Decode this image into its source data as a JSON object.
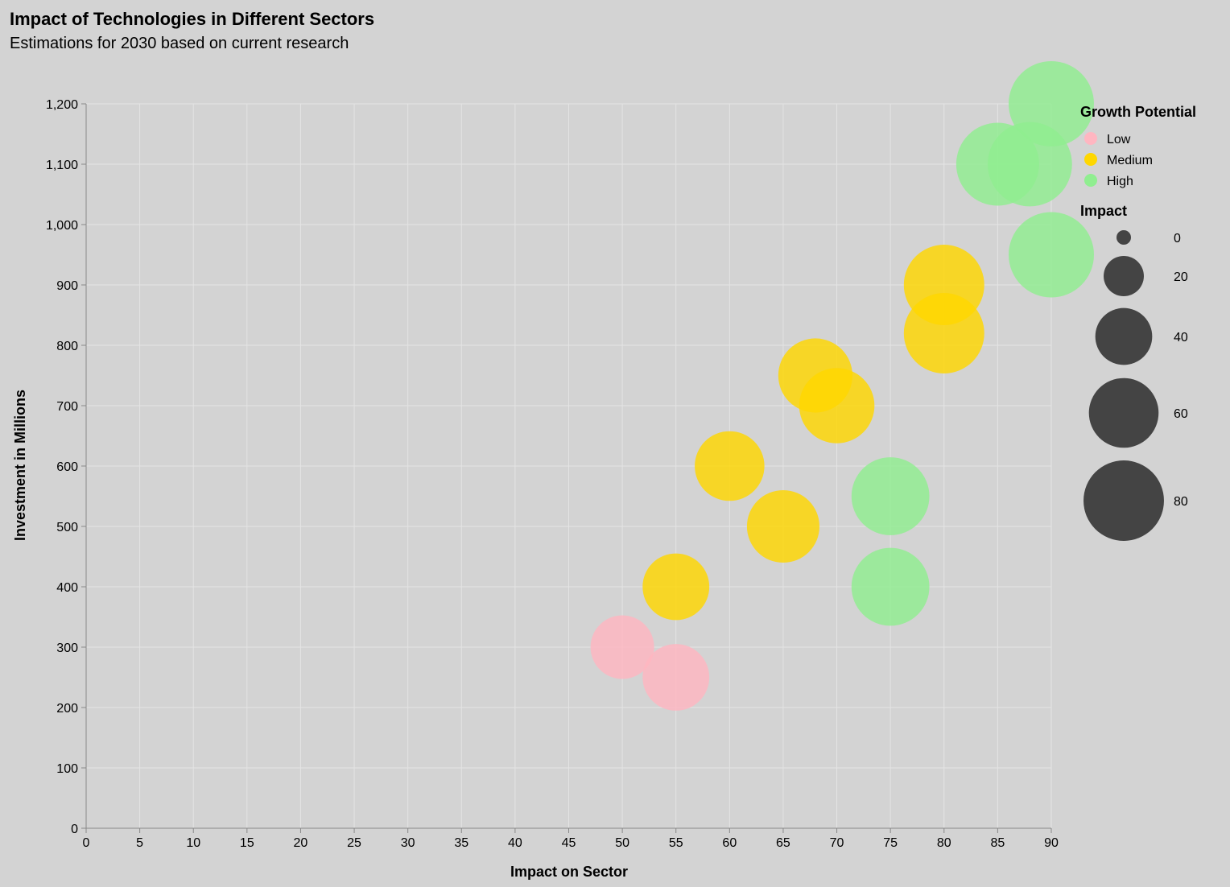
{
  "colors": {
    "background": "#d3d3d3",
    "grid": "#e4e4e4",
    "axis": "#888888",
    "Low": "#ffb6c1",
    "Medium": "#ffd700",
    "High": "#90ee90",
    "size_legend": "#444444"
  },
  "chart_data": {
    "type": "scatter",
    "title": "Impact of Technologies in Different Sectors",
    "subtitle": "Estimations for 2030 based on current research",
    "xlabel": "Impact on Sector",
    "ylabel": "Investment in Millions",
    "xlim": [
      0,
      90
    ],
    "ylim": [
      0,
      1200
    ],
    "x_ticks": [
      0,
      5,
      10,
      15,
      20,
      25,
      30,
      35,
      40,
      45,
      50,
      55,
      60,
      65,
      70,
      75,
      80,
      85,
      90
    ],
    "y_ticks": [
      0,
      100,
      200,
      300,
      400,
      500,
      600,
      700,
      800,
      900,
      1000,
      1100,
      1200
    ],
    "grid": true,
    "legend_color": {
      "title": "Growth Potential",
      "entries": [
        "Low",
        "Medium",
        "High"
      ],
      "placement": "top-right"
    },
    "legend_size": {
      "title": "Impact",
      "values": [
        0,
        20,
        40,
        60,
        80
      ],
      "placement": "right"
    },
    "points": [
      {
        "x": 90,
        "y": 1200,
        "size": 90,
        "growth": "High"
      },
      {
        "x": 85,
        "y": 1100,
        "size": 85,
        "growth": "High"
      },
      {
        "x": 88,
        "y": 1100,
        "size": 88,
        "growth": "High"
      },
      {
        "x": 90,
        "y": 950,
        "size": 90,
        "growth": "High"
      },
      {
        "x": 80,
        "y": 900,
        "size": 80,
        "growth": "Medium"
      },
      {
        "x": 80,
        "y": 820,
        "size": 80,
        "growth": "Medium"
      },
      {
        "x": 68,
        "y": 750,
        "size": 68,
        "growth": "Medium"
      },
      {
        "x": 70,
        "y": 700,
        "size": 70,
        "growth": "Medium"
      },
      {
        "x": 60,
        "y": 600,
        "size": 60,
        "growth": "Medium"
      },
      {
        "x": 75,
        "y": 550,
        "size": 75,
        "growth": "High"
      },
      {
        "x": 65,
        "y": 500,
        "size": 65,
        "growth": "Medium"
      },
      {
        "x": 55,
        "y": 400,
        "size": 55,
        "growth": "Medium"
      },
      {
        "x": 75,
        "y": 400,
        "size": 75,
        "growth": "High"
      },
      {
        "x": 50,
        "y": 300,
        "size": 50,
        "growth": "Low"
      },
      {
        "x": 55,
        "y": 250,
        "size": 55,
        "growth": "Low"
      }
    ]
  }
}
